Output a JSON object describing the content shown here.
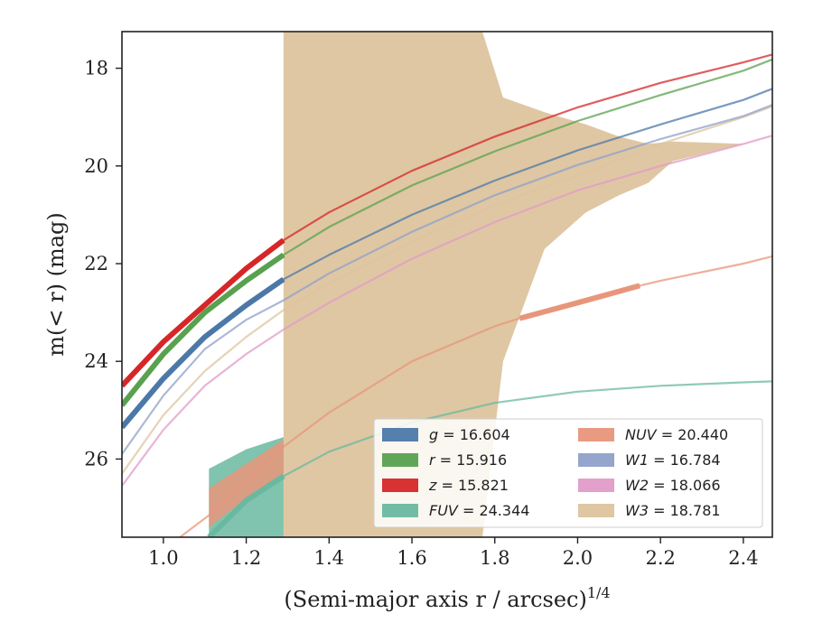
{
  "chart_data": {
    "type": "line",
    "title": "",
    "xlabel": "(Semi-major axis r / arcsec)",
    "xlabel_superscript": "1/4",
    "ylabel": "m(< r) (mag)",
    "xlim": [
      0.9,
      2.47
    ],
    "ylim": [
      27.6,
      17.25
    ],
    "y_inverted": true,
    "grid": false,
    "legend_position": "lower-right",
    "xticks": [
      "1.0",
      "1.2",
      "1.4",
      "1.6",
      "1.8",
      "2.0",
      "2.2",
      "2.4"
    ],
    "yticks": [
      "18",
      "20",
      "22",
      "24",
      "26"
    ],
    "series": [
      {
        "name": "g",
        "legend_value": "16.604",
        "color": "#4c78a8",
        "thick_range": [
          0.9,
          1.29
        ],
        "x": [
          0.9,
          1.0,
          1.1,
          1.2,
          1.29,
          1.4,
          1.6,
          1.8,
          2.0,
          2.2,
          2.4,
          2.47
        ],
        "y": [
          25.35,
          24.35,
          23.5,
          22.85,
          22.32,
          21.82,
          21.0,
          20.3,
          19.68,
          19.15,
          18.65,
          18.42
        ]
      },
      {
        "name": "r",
        "legend_value": "15.916",
        "color": "#59a14f",
        "thick_range": [
          0.9,
          1.29
        ],
        "x": [
          0.9,
          1.0,
          1.1,
          1.2,
          1.29,
          1.4,
          1.6,
          1.8,
          2.0,
          2.2,
          2.4,
          2.47
        ],
        "y": [
          24.9,
          23.85,
          23.0,
          22.35,
          21.82,
          21.25,
          20.4,
          19.7,
          19.08,
          18.55,
          18.05,
          17.82
        ]
      },
      {
        "name": "z",
        "legend_value": "15.821",
        "color": "#d62728",
        "thick_range": [
          0.9,
          1.29
        ],
        "x": [
          0.9,
          1.0,
          1.1,
          1.2,
          1.29,
          1.4,
          1.6,
          1.8,
          2.0,
          2.2,
          2.4,
          2.47
        ],
        "y": [
          24.5,
          23.6,
          22.85,
          22.1,
          21.52,
          20.95,
          20.1,
          19.4,
          18.8,
          18.3,
          17.88,
          17.72
        ]
      },
      {
        "name": "FUV",
        "legend_value": "24.344",
        "color": "#6ab8a0",
        "thick_range": [
          1.11,
          1.29
        ],
        "x": [
          1.11,
          1.2,
          1.29,
          1.4,
          1.6,
          1.8,
          2.0,
          2.2,
          2.4,
          2.47
        ],
        "y": [
          27.6,
          26.85,
          26.35,
          25.85,
          25.25,
          24.85,
          24.62,
          24.5,
          24.43,
          24.41
        ],
        "band_x": [
          1.11,
          1.2,
          1.29
        ],
        "band_upper": [
          26.2,
          25.8,
          25.55
        ],
        "band_lower": [
          27.6,
          27.6,
          27.6
        ]
      },
      {
        "name": "NUV",
        "legend_value": "20.440",
        "color": "#e8967a",
        "thick_range": [
          1.86,
          2.15
        ],
        "x": [
          1.04,
          1.11,
          1.2,
          1.29,
          1.4,
          1.6,
          1.8,
          1.86,
          2.0,
          2.15,
          2.2,
          2.4,
          2.47
        ],
        "y": [
          27.6,
          27.15,
          26.45,
          25.75,
          25.05,
          24.0,
          23.28,
          23.12,
          22.8,
          22.45,
          22.35,
          22.0,
          21.85
        ],
        "band_x": [
          1.11,
          1.2,
          1.29
        ],
        "band_upper": [
          26.6,
          26.1,
          25.6
        ],
        "band_lower": [
          27.4,
          26.8,
          26.3
        ]
      },
      {
        "name": "W1",
        "legend_value": "16.784",
        "color": "#8fa0c8",
        "thick_range": [],
        "x": [
          0.9,
          1.0,
          1.1,
          1.2,
          1.29,
          1.4,
          1.6,
          1.8,
          2.0,
          2.2,
          2.4,
          2.47
        ],
        "y": [
          25.9,
          24.7,
          23.75,
          23.15,
          22.75,
          22.2,
          21.35,
          20.6,
          19.98,
          19.45,
          18.98,
          18.75
        ]
      },
      {
        "name": "W2",
        "legend_value": "18.066",
        "color": "#e09bc8",
        "thick_range": [],
        "x": [
          0.9,
          1.0,
          1.1,
          1.2,
          1.29,
          1.4,
          1.6,
          1.8,
          2.0,
          2.2,
          2.4,
          2.47
        ],
        "y": [
          26.55,
          25.4,
          24.5,
          23.85,
          23.35,
          22.8,
          21.9,
          21.15,
          20.5,
          20.0,
          19.55,
          19.38
        ]
      },
      {
        "name": "W3",
        "legend_value": "18.781",
        "color": "#ddc49e",
        "thick_range": [],
        "x": [
          0.9,
          1.0,
          1.1,
          1.2,
          1.29,
          1.4,
          1.6,
          1.8,
          2.0,
          2.2,
          2.4,
          2.47
        ],
        "y": [
          26.3,
          25.1,
          24.2,
          23.5,
          22.95,
          22.4,
          21.55,
          20.8,
          20.2,
          19.55,
          19.0,
          18.78
        ],
        "band_x": [
          1.29,
          1.29,
          1.77,
          1.82,
          1.92,
          2.02,
          2.1,
          2.17,
          2.23,
          2.4,
          2.4,
          2.47
        ],
        "band_upper": [
          17.25,
          17.25,
          17.25,
          18.6,
          18.9,
          19.15,
          19.4,
          19.55,
          19.5,
          19.55,
          18.9,
          18.9
        ],
        "band_lower": [
          27.6,
          27.6,
          27.6,
          24.0,
          21.7,
          20.95,
          20.6,
          20.35,
          19.9,
          19.55,
          18.9,
          18.9
        ]
      }
    ]
  }
}
